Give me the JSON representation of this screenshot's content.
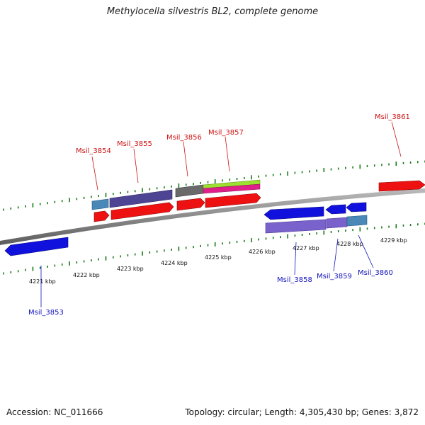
{
  "title": "Methylocella silvestris BL2, complete genome",
  "footer": {
    "accession": "Accession: NC_011666",
    "summary": "Topology: circular; Length: 4,305,430 bp; Genes: 3,872"
  },
  "colors": {
    "backbone": "#888888",
    "tick": "#1a7a1a",
    "forward_label": "#cc1111",
    "reverse_label": "#1111bb",
    "cds_forward": "#ee1111",
    "cds_reverse": "#1111dd",
    "product_slate": "#4e4494",
    "product_violet": "#7a62cc",
    "product_steel": "#4a88b8",
    "product_gray": "#6a6a6a",
    "product_lime": "#9ce030",
    "product_magenta": "#e0208a"
  },
  "scale_ticks": [
    {
      "kbp": 4221,
      "label": "4221 kbp"
    },
    {
      "kbp": 4222,
      "label": "4222 kbp"
    },
    {
      "kbp": 4223,
      "label": "4223 kbp"
    },
    {
      "kbp": 4224,
      "label": "4224 kbp"
    },
    {
      "kbp": 4225,
      "label": "4225 kbp"
    },
    {
      "kbp": 4226,
      "label": "4226 kbp"
    },
    {
      "kbp": 4227,
      "label": "4227 kbp"
    },
    {
      "kbp": 4228,
      "label": "4228 kbp"
    },
    {
      "kbp": 4229,
      "label": "4229 kbp"
    }
  ],
  "genes": [
    {
      "label": "Msil_3853",
      "strand": "reverse"
    },
    {
      "label": "Msil_3854",
      "strand": "forward"
    },
    {
      "label": "Msil_3855",
      "strand": "forward"
    },
    {
      "label": "Msil_3856",
      "strand": "forward"
    },
    {
      "label": "Msil_3857",
      "strand": "forward"
    },
    {
      "label": "Msil_3858",
      "strand": "reverse"
    },
    {
      "label": "Msil_3859",
      "strand": "reverse"
    },
    {
      "label": "Msil_3860",
      "strand": "reverse"
    },
    {
      "label": "Msil_3861",
      "strand": "forward"
    }
  ]
}
